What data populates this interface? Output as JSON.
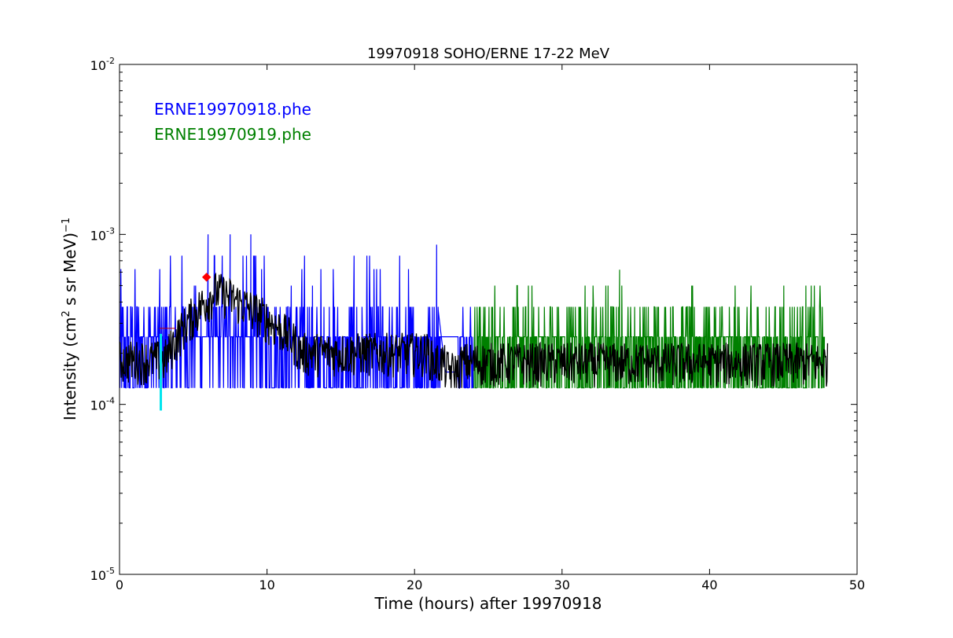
{
  "chart_data": {
    "type": "line",
    "title": "19970918 SOHO/ERNE 17-22 MeV",
    "xlabel": "Time (hours) after 19970918",
    "ylabel": {
      "prefix": "Intensity (cm",
      "sup1": "2",
      "middle": "  s sr MeV)",
      "sup2": "−1"
    },
    "xlim": [
      0,
      50
    ],
    "ylim": [
      1e-05,
      0.01
    ],
    "yscale": "log",
    "grid": false,
    "x_ticks": [
      {
        "value": 0,
        "label": "0"
      },
      {
        "value": 10,
        "label": "10"
      },
      {
        "value": 20,
        "label": "20"
      },
      {
        "value": 30,
        "label": "30"
      },
      {
        "value": 40,
        "label": "40"
      },
      {
        "value": 50,
        "label": "50"
      }
    ],
    "y_ticks": [
      {
        "value": 1e-05,
        "base": "10",
        "exp": "-5"
      },
      {
        "value": 0.0001,
        "base": "10",
        "exp": "-4"
      },
      {
        "value": 0.001,
        "base": "10",
        "exp": "-3"
      },
      {
        "value": 0.01,
        "base": "10",
        "exp": "-2"
      }
    ],
    "legend": {
      "placement": "top-left",
      "entries": [
        {
          "label": "ERNE19970918.phe",
          "color": "#0000ff"
        },
        {
          "label": "ERNE19970919.phe",
          "color": "#008000"
        }
      ]
    },
    "series": [
      {
        "name": "ERNE19970918.phe",
        "color": "#0000ff",
        "x_range": [
          0,
          24
        ],
        "levels": [
          0.000125,
          0.00025,
          0.000375,
          0.0005,
          0.000625,
          0.00075
        ],
        "peaks": [
          {
            "x": 6.0,
            "y": 0.001
          },
          {
            "x": 7.5,
            "y": 0.001
          },
          {
            "x": 8.9,
            "y": 0.001
          },
          {
            "x": 21.5,
            "y": 0.00087
          }
        ],
        "gap": [
          21.8,
          22.9
        ]
      },
      {
        "name": "ERNE19970919.phe",
        "color": "#008000",
        "x_range": [
          24,
          47.8
        ],
        "levels": [
          0.000125,
          0.00025,
          0.000375,
          0.0005
        ],
        "peaks": [
          {
            "x": 33.9,
            "y": 0.00062
          }
        ]
      },
      {
        "color": "#000000",
        "description_role": "smoothed",
        "x_range": [
          0,
          48
        ],
        "baseline": 0.000125
      }
    ],
    "markers": [
      {
        "kind": "diamond",
        "color": "#ff0000",
        "x": 5.9,
        "y": 0.00056
      },
      {
        "kind": "vline",
        "color": "#00e5ee",
        "x": 2.8,
        "y_from": 9.2e-05,
        "y_to": 0.00026
      },
      {
        "kind": "hline",
        "color": "#c00000",
        "x_from": 2.7,
        "x_to": 3.8,
        "y": 0.00028
      }
    ]
  }
}
